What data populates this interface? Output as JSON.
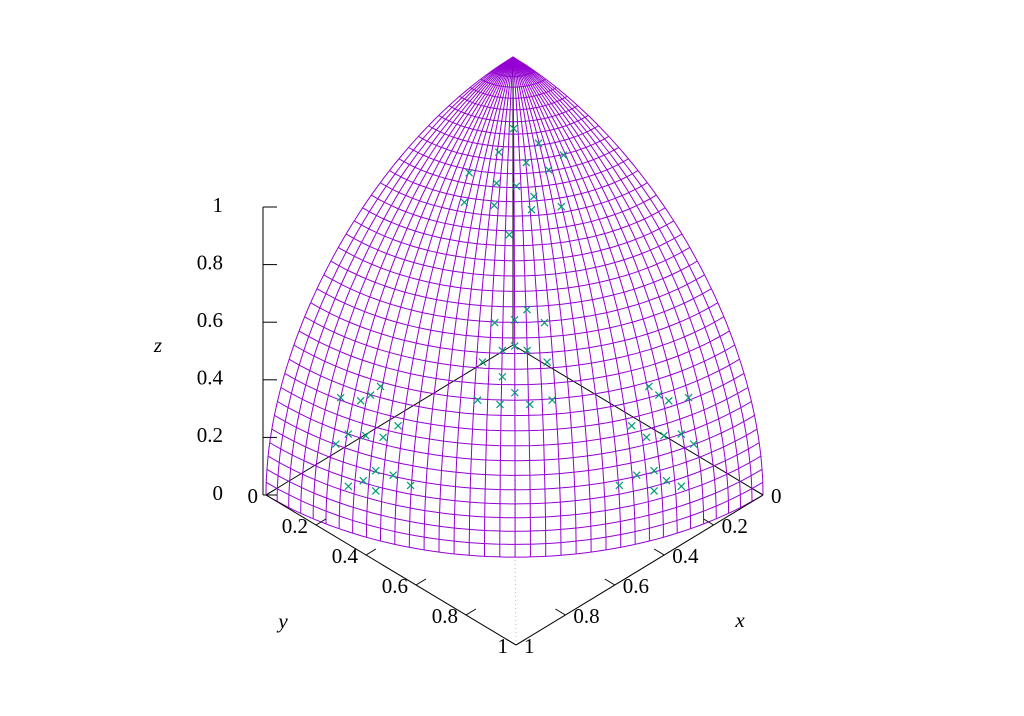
{
  "chart_data": {
    "type": "surface3d",
    "xlabel": "x",
    "ylabel": "y",
    "zlabel": "z",
    "xlim": [
      0,
      1
    ],
    "ylim": [
      0,
      1
    ],
    "zlim": [
      0,
      1
    ],
    "xticks": [
      0,
      0.2,
      0.4,
      0.6,
      0.8,
      1
    ],
    "yticks": [
      0,
      0.2,
      0.4,
      0.6,
      0.8,
      1
    ],
    "zticks": [
      0,
      0.2,
      0.4,
      0.6,
      0.8,
      1
    ],
    "surface_color": "#9400d3",
    "points": {
      "color": "#009e73",
      "x": [
        0.25,
        0.35,
        0.3,
        0.22,
        0.4,
        0.28,
        0.33,
        0.18,
        0.38,
        0.26,
        0.45,
        0.2,
        0.32,
        0.15,
        0.42,
        0.55,
        0.6,
        0.5,
        0.62,
        0.58,
        0.52,
        0.65,
        0.57,
        0.48,
        0.66,
        0.6,
        0.54,
        0.7,
        0.55,
        0.63,
        0.9,
        0.88,
        0.92,
        0.86,
        0.93,
        0.89,
        0.85,
        0.94,
        0.9,
        0.87,
        0.91,
        0.84,
        0.95,
        0.88,
        0.92,
        0.3,
        0.35,
        0.25,
        0.28,
        0.32,
        0.4,
        0.38,
        0.22,
        0.2,
        0.45,
        0.35,
        0.3,
        0.28,
        0.26,
        0.36
      ],
      "y": [
        0.3,
        0.28,
        0.38,
        0.36,
        0.32,
        0.22,
        0.4,
        0.28,
        0.2,
        0.45,
        0.25,
        0.2,
        0.33,
        0.35,
        0.4,
        0.6,
        0.55,
        0.55,
        0.62,
        0.5,
        0.65,
        0.52,
        0.57,
        0.6,
        0.6,
        0.66,
        0.54,
        0.55,
        0.7,
        0.58,
        0.3,
        0.35,
        0.25,
        0.28,
        0.32,
        0.4,
        0.38,
        0.22,
        0.2,
        0.45,
        0.35,
        0.3,
        0.28,
        0.26,
        0.36,
        0.9,
        0.88,
        0.92,
        0.86,
        0.93,
        0.89,
        0.85,
        0.94,
        0.9,
        0.87,
        0.91,
        0.84,
        0.95,
        0.88,
        0.92
      ],
      "z": [
        0.92,
        0.89,
        0.87,
        0.91,
        0.86,
        0.93,
        0.85,
        0.94,
        0.9,
        0.85,
        0.86,
        0.96,
        0.89,
        0.92,
        0.81,
        0.58,
        0.58,
        0.67,
        0.48,
        0.64,
        0.55,
        0.55,
        0.59,
        0.64,
        0.45,
        0.45,
        0.65,
        0.46,
        0.46,
        0.52,
        0.31,
        0.32,
        0.3,
        0.42,
        0.18,
        0.22,
        0.36,
        0.26,
        0.39,
        0.2,
        0.22,
        0.45,
        0.15,
        0.4,
        0.16,
        0.31,
        0.32,
        0.3,
        0.42,
        0.18,
        0.22,
        0.36,
        0.26,
        0.39,
        0.2,
        0.22,
        0.45,
        0.15,
        0.4,
        0.16
      ]
    }
  }
}
